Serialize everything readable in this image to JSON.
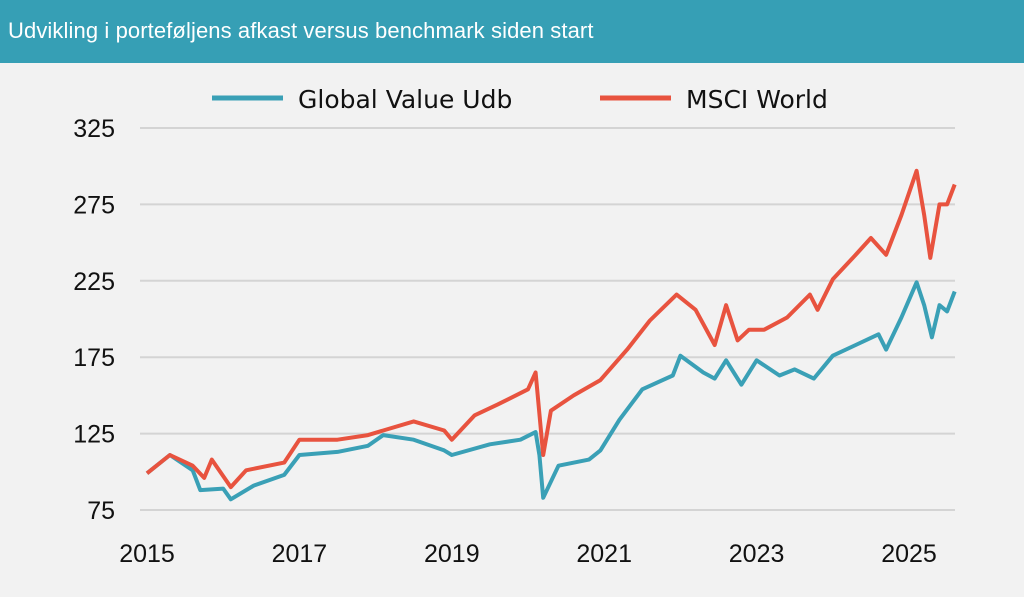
{
  "header": {
    "title": "Udvikling i porteføljens afkast versus benchmark siden start"
  },
  "chart_data": {
    "type": "line",
    "title": "Udvikling i porteføljens afkast versus benchmark siden start",
    "xlabel": "",
    "ylabel": "",
    "xlim": [
      2015,
      2025.6
    ],
    "ylim": [
      75,
      325
    ],
    "yticks": [
      75,
      125,
      175,
      225,
      275,
      325
    ],
    "xticks": [
      2015,
      2017,
      2019,
      2021,
      2023,
      2025
    ],
    "grid": "horizontal",
    "legend_position": "top",
    "series": [
      {
        "name": "Global Value Udb",
        "color": "#3aa0b6",
        "x": [
          2015.0,
          2015.3,
          2015.6,
          2015.7,
          2016.0,
          2016.1,
          2016.4,
          2016.8,
          2017.0,
          2017.5,
          2017.9,
          2018.1,
          2018.5,
          2018.9,
          2019.0,
          2019.5,
          2019.9,
          2020.1,
          2020.15,
          2020.2,
          2020.4,
          2020.8,
          2020.95,
          2021.2,
          2021.5,
          2021.9,
          2022.0,
          2022.3,
          2022.45,
          2022.6,
          2022.8,
          2023.0,
          2023.3,
          2023.5,
          2023.75,
          2024.0,
          2024.3,
          2024.6,
          2024.7,
          2024.9,
          2025.1,
          2025.2,
          2025.3,
          2025.4,
          2025.5,
          2025.6
        ],
        "y": [
          99,
          111,
          101,
          88,
          89,
          82,
          91,
          98,
          111,
          113,
          117,
          124,
          121,
          114,
          111,
          118,
          121,
          126,
          111,
          83,
          104,
          108,
          114,
          134,
          154,
          163,
          176,
          165,
          161,
          173,
          157,
          173,
          163,
          167,
          161,
          176,
          183,
          190,
          180,
          201,
          224,
          209,
          188,
          209,
          205,
          218
        ]
      },
      {
        "name": "MSCI World",
        "color": "#e8533f",
        "x": [
          2015.0,
          2015.3,
          2015.6,
          2015.75,
          2015.85,
          2016.1,
          2016.3,
          2016.8,
          2017.0,
          2017.5,
          2017.9,
          2018.1,
          2018.5,
          2018.9,
          2019.0,
          2019.3,
          2019.6,
          2020.0,
          2020.1,
          2020.2,
          2020.3,
          2020.6,
          2020.95,
          2021.3,
          2021.6,
          2021.95,
          2022.2,
          2022.45,
          2022.6,
          2022.75,
          2022.9,
          2023.1,
          2023.4,
          2023.7,
          2023.8,
          2024.0,
          2024.3,
          2024.5,
          2024.7,
          2024.9,
          2025.1,
          2025.2,
          2025.28,
          2025.4,
          2025.5,
          2025.6
        ],
        "y": [
          99,
          111,
          104,
          96,
          108,
          90,
          101,
          106,
          121,
          121,
          124,
          127,
          133,
          127,
          121,
          137,
          144,
          154,
          165,
          111,
          140,
          150,
          160,
          180,
          199,
          216,
          206,
          183,
          209,
          186,
          193,
          193,
          201,
          216,
          206,
          226,
          242,
          253,
          242,
          268,
          297,
          268,
          240,
          275,
          275,
          288
        ]
      }
    ]
  }
}
